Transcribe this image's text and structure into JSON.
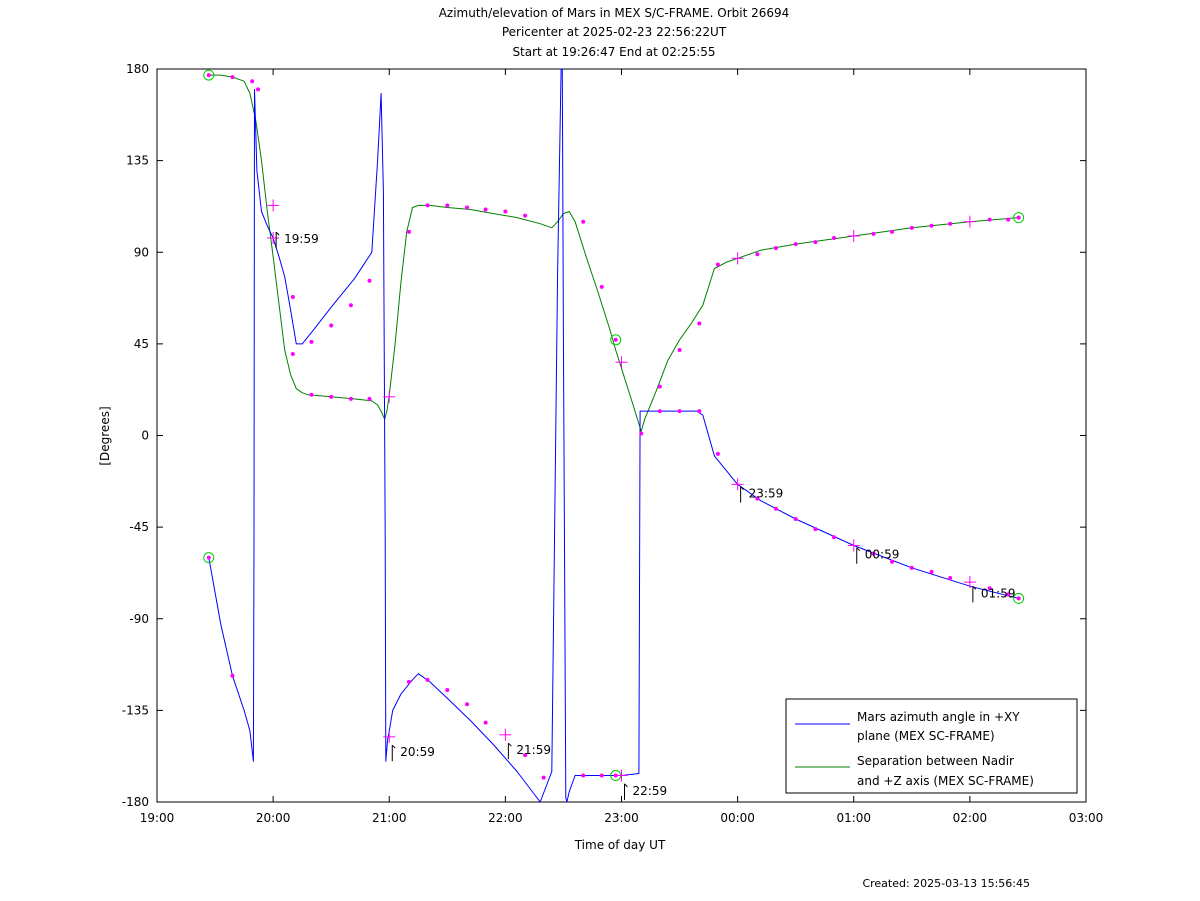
{
  "chart_data": {
    "type": "line",
    "title": [
      "Azimuth/elevation of Mars in MEX S/C-FRAME.  Orbit 26694",
      "Pericenter at 2025-02-23 22:56:22UT",
      "Start at 19:26:47 End at 02:25:55"
    ],
    "xlabel": "Time of day UT",
    "ylabel": "[Degrees]",
    "xlim": [
      19.0,
      27.0
    ],
    "ylim": [
      -180,
      180
    ],
    "x_ticks": [
      19,
      20,
      21,
      22,
      23,
      24,
      25,
      26,
      27
    ],
    "x_tick_labels": [
      "19:00",
      "20:00",
      "21:00",
      "22:00",
      "23:00",
      "00:00",
      "01:00",
      "02:00",
      "03:00"
    ],
    "y_ticks": [
      180,
      135,
      90,
      45,
      0,
      -45,
      -90,
      -135,
      -180
    ],
    "y_tick_labels": [
      "180",
      "135",
      "90",
      "45",
      "0",
      "-45",
      "-90",
      "-135",
      "-180"
    ],
    "legend_position": "bottom-right",
    "series": [
      {
        "name": "Mars azimuth angle in +XY plane (MEX SC-FRAME)",
        "legend_lines": [
          "Mars azimuth angle in +XY",
          "plane (MEX SC-FRAME)"
        ],
        "color": "#0000ff",
        "x": [
          19.446,
          19.55,
          19.65,
          19.75,
          19.8,
          19.83,
          19.835,
          19.84,
          19.86,
          19.9,
          19.95,
          20.0,
          20.05,
          20.1,
          20.15,
          20.2,
          20.25,
          20.35,
          20.5,
          20.7,
          20.85,
          20.9,
          20.93,
          20.95,
          20.965,
          20.97,
          20.985,
          21.0,
          21.03,
          21.1,
          21.2,
          21.25,
          21.35,
          21.5,
          21.7,
          21.9,
          22.1,
          22.3,
          22.4,
          22.45,
          22.48,
          22.49,
          22.5,
          22.52,
          22.53,
          22.55,
          22.6,
          22.7,
          23.0,
          23.15,
          23.16,
          23.2,
          23.5,
          23.65,
          23.7,
          23.8,
          24.0,
          24.2,
          24.5,
          25.0,
          25.5,
          26.0,
          26.42
        ],
        "y": [
          -60,
          -93,
          -118,
          -135,
          -145,
          -160,
          -50,
          170,
          130,
          110,
          103,
          97,
          88,
          78,
          62,
          45,
          45,
          52,
          63,
          77,
          90,
          135,
          168,
          120,
          -50,
          -160,
          -150,
          -145,
          -135,
          -127,
          -120,
          -117,
          -121,
          -129,
          -140,
          -152,
          -165,
          -180,
          -165,
          80,
          180,
          180,
          50,
          -178,
          -180,
          -175,
          -167,
          -167,
          -167,
          -166,
          12,
          12,
          12,
          12,
          10,
          -10,
          -24,
          -32,
          -41,
          -54,
          -65,
          -74,
          -80
        ]
      },
      {
        "name": "Separation between Nadir and +Z axis (MEX SC-FRAME)",
        "legend_lines": [
          "Separation between Nadir",
          "and +Z axis (MEX SC-FRAME)"
        ],
        "color": "#008000",
        "x": [
          19.446,
          19.55,
          19.65,
          19.75,
          19.8,
          19.85,
          19.9,
          19.95,
          20.0,
          20.05,
          20.1,
          20.15,
          20.2,
          20.25,
          20.3,
          20.5,
          20.7,
          20.85,
          20.9,
          20.93,
          20.96,
          20.98,
          21.0,
          21.05,
          21.1,
          21.15,
          21.2,
          21.25,
          21.35,
          21.5,
          21.7,
          21.9,
          22.1,
          22.3,
          22.4,
          22.45,
          22.5,
          22.55,
          22.6,
          22.65,
          22.7,
          22.8,
          22.9,
          22.95,
          23.0,
          23.1,
          23.17,
          23.2,
          23.3,
          23.4,
          23.5,
          23.6,
          23.7,
          23.8,
          23.9,
          24.0,
          24.2,
          24.5,
          25.0,
          25.5,
          26.0,
          26.42
        ],
        "y": [
          177,
          177,
          176,
          174,
          168,
          155,
          135,
          110,
          88,
          65,
          42,
          30,
          23,
          21,
          20,
          19,
          18,
          17,
          15,
          12,
          8,
          12,
          20,
          45,
          75,
          100,
          112,
          113,
          113,
          112,
          111,
          109,
          107,
          104,
          102,
          105,
          109,
          110,
          105,
          96,
          87,
          70,
          52,
          42,
          33,
          15,
          2,
          8,
          22,
          37,
          47,
          55,
          64,
          82,
          85,
          87,
          91,
          94,
          98,
          102,
          105,
          107
        ]
      }
    ],
    "markers": [
      {
        "x": 19.446,
        "y": -60,
        "shape": "circle"
      },
      {
        "x": 19.446,
        "y": 177,
        "shape": "circle"
      },
      {
        "x": 22.95,
        "y": 47,
        "shape": "circle"
      },
      {
        "x": 22.95,
        "y": -167,
        "shape": "circle"
      },
      {
        "x": 26.42,
        "y": -80,
        "shape": "circle"
      },
      {
        "x": 26.42,
        "y": 107,
        "shape": "circle"
      },
      {
        "x": 20.0,
        "y": 113,
        "shape": "plus"
      },
      {
        "x": 20.0,
        "y": 97,
        "shape": "plus"
      },
      {
        "x": 21.0,
        "y": 19,
        "shape": "plus"
      },
      {
        "x": 21.0,
        "y": -148,
        "shape": "plus"
      },
      {
        "x": 22.0,
        "y": -147,
        "shape": "plus"
      },
      {
        "x": 23.0,
        "y": 36,
        "shape": "plus"
      },
      {
        "x": 23.0,
        "y": -167,
        "shape": "plus"
      },
      {
        "x": 24.0,
        "y": -24,
        "shape": "plus"
      },
      {
        "x": 24.0,
        "y": 87,
        "shape": "plus"
      },
      {
        "x": 25.0,
        "y": -54,
        "shape": "plus"
      },
      {
        "x": 25.0,
        "y": 98,
        "shape": "plus"
      },
      {
        "x": 26.0,
        "y": -72,
        "shape": "plus"
      },
      {
        "x": 26.0,
        "y": 105,
        "shape": "plus"
      }
    ],
    "dots": [
      {
        "x": 19.65,
        "y": 176
      },
      {
        "x": 19.82,
        "y": 174
      },
      {
        "x": 19.87,
        "y": 170
      },
      {
        "x": 19.65,
        "y": -118
      },
      {
        "x": 20.17,
        "y": 68
      },
      {
        "x": 20.17,
        "y": 40
      },
      {
        "x": 20.33,
        "y": 46
      },
      {
        "x": 20.5,
        "y": 54
      },
      {
        "x": 20.67,
        "y": 64
      },
      {
        "x": 20.83,
        "y": 76
      },
      {
        "x": 20.33,
        "y": 20
      },
      {
        "x": 20.5,
        "y": 19
      },
      {
        "x": 20.67,
        "y": 18
      },
      {
        "x": 20.83,
        "y": 18
      },
      {
        "x": 21.17,
        "y": 100
      },
      {
        "x": 21.33,
        "y": 113
      },
      {
        "x": 21.5,
        "y": 113
      },
      {
        "x": 21.67,
        "y": 112
      },
      {
        "x": 21.83,
        "y": 111
      },
      {
        "x": 22.0,
        "y": 110
      },
      {
        "x": 22.17,
        "y": 108
      },
      {
        "x": 22.67,
        "y": 105
      },
      {
        "x": 22.83,
        "y": 73
      },
      {
        "x": 23.17,
        "y": 1
      },
      {
        "x": 23.33,
        "y": 24
      },
      {
        "x": 23.5,
        "y": 42
      },
      {
        "x": 23.67,
        "y": 55
      },
      {
        "x": 23.83,
        "y": 84
      },
      {
        "x": 21.17,
        "y": -121
      },
      {
        "x": 21.33,
        "y": -120
      },
      {
        "x": 21.5,
        "y": -125
      },
      {
        "x": 21.67,
        "y": -132
      },
      {
        "x": 21.83,
        "y": -141
      },
      {
        "x": 22.17,
        "y": -157
      },
      {
        "x": 22.33,
        "y": -168
      },
      {
        "x": 22.67,
        "y": -167
      },
      {
        "x": 22.83,
        "y": -167
      },
      {
        "x": 23.33,
        "y": 12
      },
      {
        "x": 23.5,
        "y": 12
      },
      {
        "x": 23.67,
        "y": 12
      },
      {
        "x": 23.83,
        "y": -9
      },
      {
        "x": 24.17,
        "y": -31
      },
      {
        "x": 24.33,
        "y": -36
      },
      {
        "x": 24.5,
        "y": -41
      },
      {
        "x": 24.67,
        "y": -46
      },
      {
        "x": 24.83,
        "y": -50
      },
      {
        "x": 25.17,
        "y": -58
      },
      {
        "x": 25.33,
        "y": -62
      },
      {
        "x": 25.5,
        "y": -65
      },
      {
        "x": 25.67,
        "y": -67
      },
      {
        "x": 25.83,
        "y": -70
      },
      {
        "x": 26.17,
        "y": -75
      },
      {
        "x": 26.33,
        "y": -78
      },
      {
        "x": 24.17,
        "y": 89
      },
      {
        "x": 24.33,
        "y": 92
      },
      {
        "x": 24.5,
        "y": 94
      },
      {
        "x": 24.67,
        "y": 95
      },
      {
        "x": 24.83,
        "y": 97
      },
      {
        "x": 25.17,
        "y": 99
      },
      {
        "x": 25.33,
        "y": 100
      },
      {
        "x": 25.5,
        "y": 102
      },
      {
        "x": 25.67,
        "y": 103
      },
      {
        "x": 25.83,
        "y": 104
      },
      {
        "x": 26.17,
        "y": 106
      },
      {
        "x": 26.33,
        "y": 106
      }
    ],
    "annotations": [
      {
        "text": "19:59",
        "x": 20.0,
        "y": 94
      },
      {
        "text": "20:59",
        "x": 21.0,
        "y": -158
      },
      {
        "text": "21:59",
        "x": 22.0,
        "y": -157
      },
      {
        "text": "22:59",
        "x": 23.0,
        "y": -177
      },
      {
        "text": "23:59",
        "x": 24.0,
        "y": -31
      },
      {
        "text": "00:59",
        "x": 25.0,
        "y": -61
      },
      {
        "text": "01:59",
        "x": 26.0,
        "y": -80
      }
    ],
    "created": "Created: 2025-03-13 15:56:45"
  }
}
